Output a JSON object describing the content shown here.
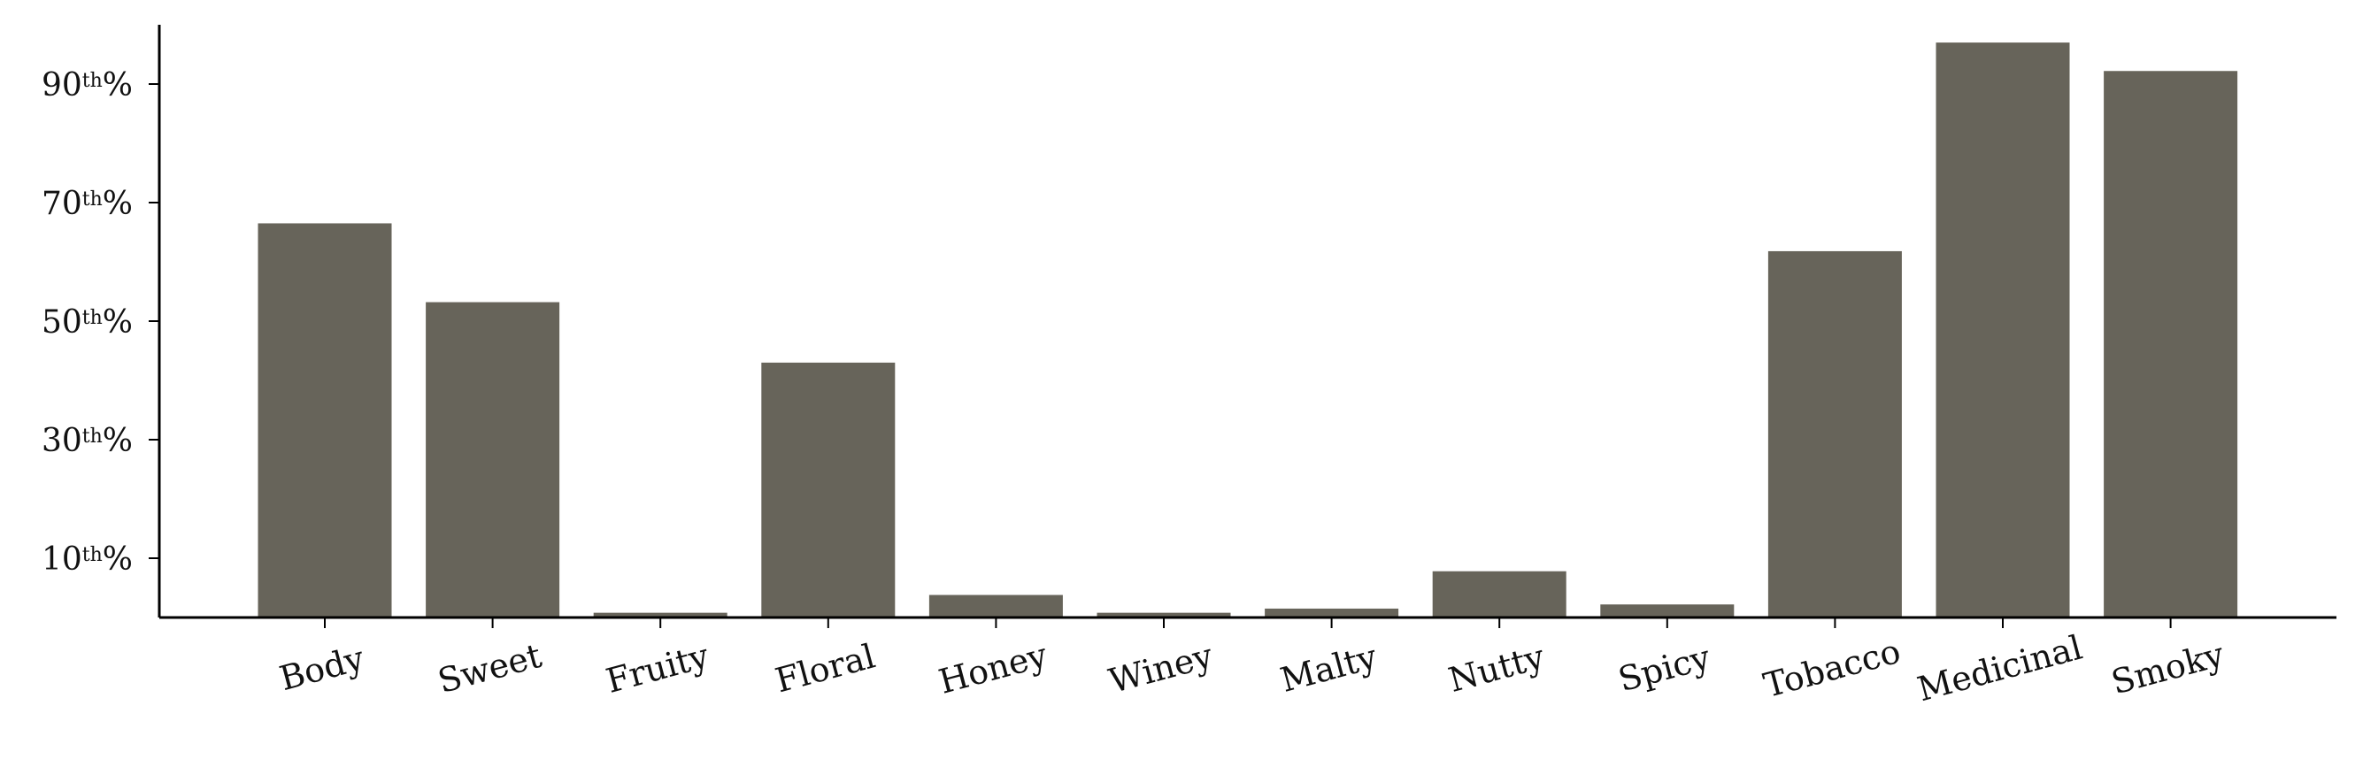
{
  "chart_data": {
    "type": "bar",
    "title": "",
    "xlabel": "",
    "ylabel": "",
    "categories": [
      "Body",
      "Sweet",
      "Fruity",
      "Floral",
      "Honey",
      "Winey",
      "Malty",
      "Nutty",
      "Spicy",
      "Tobacco",
      "Medicinal",
      "Smoky"
    ],
    "values": [
      66.5,
      53.2,
      0.8,
      43,
      3.8,
      0.8,
      1.5,
      7.8,
      2.2,
      61.8,
      97,
      92.2
    ],
    "ylim": [
      0,
      100
    ],
    "yticks": [
      10,
      30,
      50,
      70,
      90
    ],
    "ytick_labels": [
      {
        "num": "10",
        "sup": "th",
        "suffix": "%"
      },
      {
        "num": "30",
        "sup": "th",
        "suffix": "%"
      },
      {
        "num": "50",
        "sup": "th",
        "suffix": "%"
      },
      {
        "num": "70",
        "sup": "th",
        "suffix": "%"
      },
      {
        "num": "90",
        "sup": "th",
        "suffix": "%"
      }
    ],
    "bar_color": "#67645a",
    "axis_color": "#000000",
    "grid": false,
    "legend": "none",
    "xtick_rotation": "slanted"
  }
}
